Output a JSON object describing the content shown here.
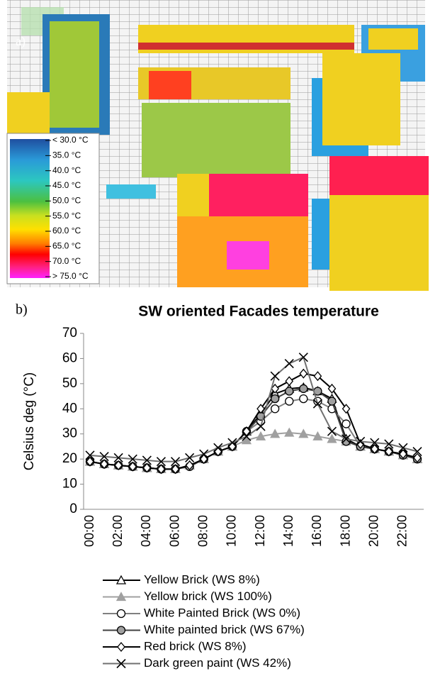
{
  "panel_a": {
    "label": "a)",
    "legend_labels": [
      "< 30.0 °C",
      "35.0 °C",
      "40.0 °C",
      "45.0 °C",
      "50.0 °C",
      "55.0 °C",
      "60.0 °C",
      "65.0 °C",
      "70.0 °C",
      "> 75.0 °C"
    ]
  },
  "panel_b_label": "b)",
  "chart_data": {
    "type": "line",
    "title": "SW oriented Facades temperature",
    "y_label": "Celsius deg (°C)",
    "categories": [
      "00:00",
      null,
      "02:00",
      null,
      "04:00",
      null,
      "06:00",
      null,
      "08:00",
      null,
      "10:00",
      null,
      "12:00",
      null,
      "14:00",
      null,
      "16:00",
      null,
      "18:00",
      null,
      "20:00",
      null,
      "22:00",
      null
    ],
    "ylim": [
      0,
      70
    ],
    "yticks": [
      0,
      10,
      20,
      30,
      40,
      50,
      60,
      70
    ],
    "grid": false,
    "series": [
      {
        "name": "Yellow Brick (WS 8%)",
        "color": "#000000",
        "marker": "triangle",
        "marker_fill": "#ffffff",
        "values": [
          19,
          18,
          17.5,
          17,
          16.5,
          16,
          16,
          17.5,
          20,
          23,
          25,
          31,
          38,
          46,
          48,
          48.5,
          47,
          44,
          28,
          25,
          24,
          23,
          21.5,
          20
        ]
      },
      {
        "name": "Yellow brick (WS 100%)",
        "color": "#a0a0a0",
        "marker": "triangle",
        "marker_fill": "#a0a0a0",
        "values": [
          19,
          18,
          17.5,
          17,
          16.5,
          16,
          16,
          17.5,
          20,
          23,
          25,
          27.5,
          29,
          30,
          30.5,
          30,
          29,
          28,
          27,
          25,
          24,
          23,
          21.5,
          20
        ]
      },
      {
        "name": "White Painted Brick (WS 0%)",
        "color": "#808080",
        "marker": "circle",
        "marker_fill": "#ffffff",
        "values": [
          19,
          18,
          17.5,
          17,
          16.5,
          16,
          16,
          17,
          20,
          23,
          25,
          31,
          35,
          40,
          43,
          44,
          43,
          40,
          34,
          25,
          24,
          23,
          22,
          20
        ]
      },
      {
        "name": "White painted brick (WS 67%)",
        "color": "#404040",
        "marker": "circle",
        "marker_fill": "#a0a0a0",
        "values": [
          19,
          18,
          17.5,
          17,
          16.5,
          16,
          16,
          17,
          20,
          23,
          25,
          31,
          37,
          44,
          47,
          48,
          47,
          43,
          27,
          25,
          24,
          23,
          21.5,
          20
        ]
      },
      {
        "name": "Red brick (WS 8%)",
        "color": "#000000",
        "marker": "diamond",
        "marker_fill": "#ffffff",
        "values": [
          19,
          18,
          17.5,
          17,
          16.5,
          16,
          16,
          17.5,
          20,
          23,
          25,
          31,
          40,
          48,
          51,
          54,
          53,
          48,
          40,
          26,
          24,
          23,
          22,
          20.5
        ]
      },
      {
        "name": "Dark green paint (WS 42%)",
        "color": "#707070",
        "marker": "x",
        "marker_fill": "none",
        "values": [
          21.5,
          21,
          20.5,
          20,
          19.5,
          19,
          19,
          20.5,
          22,
          24.5,
          26.5,
          29,
          33,
          53,
          58,
          60.5,
          42,
          31,
          28,
          27,
          26.5,
          26,
          24.5,
          23
        ]
      }
    ]
  }
}
